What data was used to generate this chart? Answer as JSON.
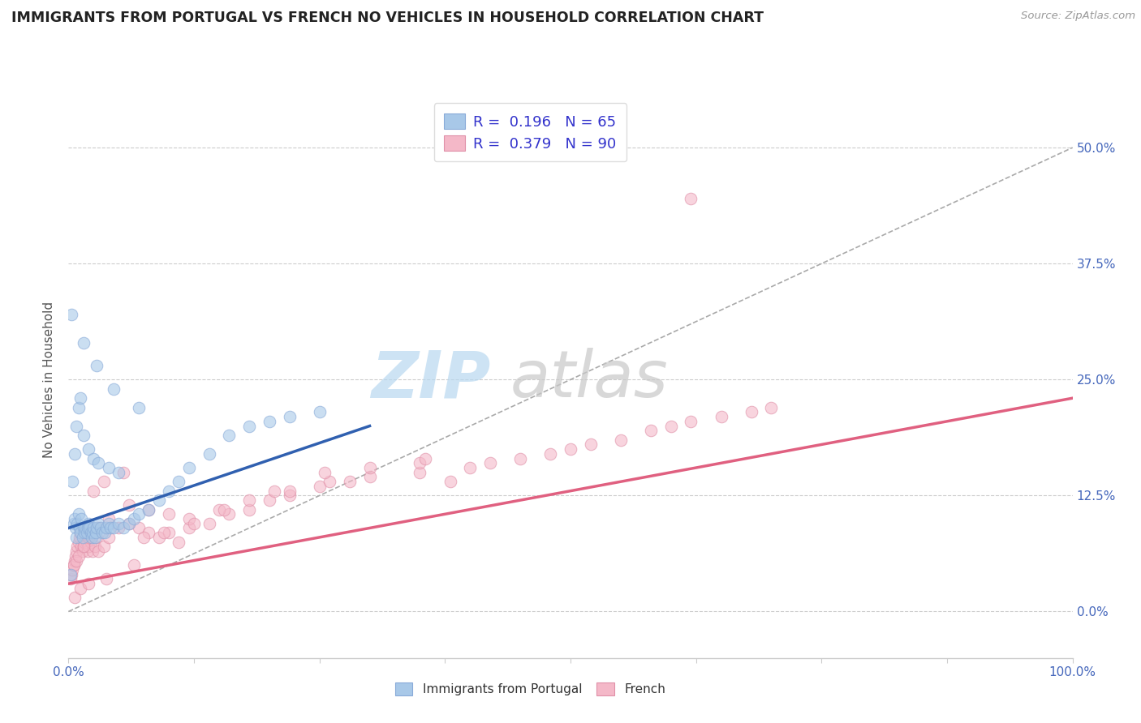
{
  "title": "IMMIGRANTS FROM PORTUGAL VS FRENCH NO VEHICLES IN HOUSEHOLD CORRELATION CHART",
  "source": "Source: ZipAtlas.com",
  "ylabel": "No Vehicles in Household",
  "xlim": [
    0.0,
    100.0
  ],
  "ylim": [
    -5.0,
    55.0
  ],
  "yticks": [
    0.0,
    12.5,
    25.0,
    37.5,
    50.0
  ],
  "ytick_labels": [
    "0.0%",
    "12.5%",
    "25.0%",
    "37.5%",
    "50.0%"
  ],
  "xtick_labels": [
    "0.0%",
    "100.0%"
  ],
  "legend_line1": "R =  0.196   N = 65",
  "legend_line2": "R =  0.379   N = 90",
  "color_blue": "#a8c8e8",
  "color_pink": "#f4b8c8",
  "color_blue_line": "#3060b0",
  "color_pink_line": "#e06080",
  "color_dashed": "#aaaaaa",
  "color_title": "#222222",
  "color_tick": "#4466bb",
  "color_source": "#999999",
  "color_legend_text": "#3333cc",
  "watermark_zip_color": "#c8e0f0",
  "watermark_atlas_color": "#cccccc",
  "background": "#ffffff",
  "blue_scatter_x": [
    0.3,
    0.5,
    0.6,
    0.7,
    0.8,
    0.9,
    1.0,
    1.1,
    1.2,
    1.3,
    1.4,
    1.5,
    1.6,
    1.7,
    1.8,
    1.9,
    2.0,
    2.1,
    2.2,
    2.3,
    2.4,
    2.5,
    2.6,
    2.7,
    2.8,
    3.0,
    3.2,
    3.4,
    3.6,
    3.8,
    4.0,
    4.2,
    4.5,
    5.0,
    5.5,
    6.0,
    6.5,
    7.0,
    8.0,
    9.0,
    10.0,
    11.0,
    12.0,
    14.0,
    16.0,
    18.0,
    20.0,
    22.0,
    25.0,
    0.4,
    0.6,
    0.8,
    1.0,
    1.2,
    1.5,
    2.0,
    2.5,
    3.0,
    4.0,
    5.0,
    0.2,
    1.5,
    2.8,
    4.5,
    7.0
  ],
  "blue_scatter_y": [
    32.0,
    9.5,
    10.0,
    9.0,
    8.0,
    9.5,
    10.5,
    9.0,
    8.5,
    10.0,
    8.0,
    9.0,
    8.5,
    9.0,
    8.5,
    9.0,
    9.5,
    9.0,
    8.5,
    8.0,
    8.5,
    9.0,
    8.0,
    8.5,
    9.0,
    9.5,
    9.0,
    8.5,
    8.5,
    9.0,
    9.5,
    9.0,
    9.0,
    9.5,
    9.0,
    9.5,
    10.0,
    10.5,
    11.0,
    12.0,
    13.0,
    14.0,
    15.5,
    17.0,
    19.0,
    20.0,
    20.5,
    21.0,
    21.5,
    14.0,
    17.0,
    20.0,
    22.0,
    23.0,
    19.0,
    17.5,
    16.5,
    16.0,
    15.5,
    15.0,
    4.0,
    29.0,
    26.5,
    24.0,
    22.0
  ],
  "pink_scatter_x": [
    0.2,
    0.3,
    0.4,
    0.5,
    0.6,
    0.7,
    0.8,
    0.9,
    1.0,
    1.1,
    1.2,
    1.3,
    1.4,
    1.5,
    1.6,
    1.7,
    1.8,
    1.9,
    2.0,
    2.2,
    2.4,
    2.6,
    2.8,
    3.0,
    3.5,
    4.0,
    5.0,
    6.0,
    7.0,
    8.0,
    9.0,
    10.0,
    12.0,
    14.0,
    16.0,
    18.0,
    20.0,
    22.0,
    25.0,
    28.0,
    30.0,
    35.0,
    38.0,
    40.0,
    42.0,
    45.0,
    48.0,
    50.0,
    52.0,
    55.0,
    58.0,
    60.0,
    62.0,
    65.0,
    68.0,
    70.0,
    62.0,
    0.5,
    0.8,
    1.0,
    1.5,
    2.0,
    3.0,
    4.0,
    6.0,
    8.0,
    10.0,
    12.0,
    15.0,
    18.0,
    22.0,
    26.0,
    30.0,
    35.0,
    2.5,
    3.5,
    5.5,
    7.5,
    9.5,
    12.5,
    15.5,
    20.5,
    25.5,
    35.5,
    0.6,
    1.2,
    2.0,
    3.8,
    6.5,
    11.0
  ],
  "pink_scatter_y": [
    3.5,
    4.0,
    4.5,
    5.0,
    5.5,
    6.0,
    6.5,
    7.0,
    7.5,
    8.0,
    8.5,
    7.0,
    6.5,
    7.0,
    7.5,
    8.0,
    7.5,
    6.5,
    7.0,
    7.5,
    6.5,
    7.0,
    8.0,
    6.5,
    7.0,
    8.0,
    9.0,
    9.5,
    9.0,
    8.5,
    8.0,
    8.5,
    9.0,
    9.5,
    10.5,
    11.0,
    12.0,
    12.5,
    13.5,
    14.0,
    14.5,
    15.0,
    14.0,
    15.5,
    16.0,
    16.5,
    17.0,
    17.5,
    18.0,
    18.5,
    19.5,
    20.0,
    20.5,
    21.0,
    21.5,
    22.0,
    44.5,
    5.0,
    5.5,
    6.0,
    7.0,
    8.0,
    9.0,
    10.0,
    11.5,
    11.0,
    10.5,
    10.0,
    11.0,
    12.0,
    13.0,
    14.0,
    15.5,
    16.0,
    13.0,
    14.0,
    15.0,
    8.0,
    8.5,
    9.5,
    11.0,
    13.0,
    15.0,
    16.5,
    1.5,
    2.5,
    3.0,
    3.5,
    5.0,
    7.5
  ],
  "blue_line_x": [
    0.0,
    30.0
  ],
  "blue_line_y": [
    9.0,
    20.0
  ],
  "pink_line_x": [
    0.0,
    100.0
  ],
  "pink_line_y": [
    3.0,
    23.0
  ],
  "dashed_line_x": [
    0.0,
    100.0
  ],
  "dashed_line_y": [
    0.0,
    50.0
  ]
}
